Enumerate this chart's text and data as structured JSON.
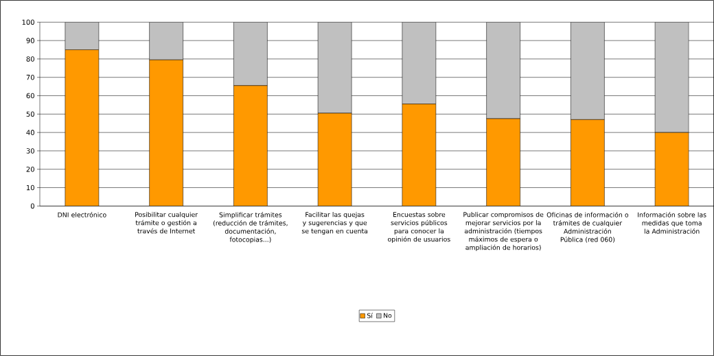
{
  "chart_data": {
    "type": "bar",
    "stacked": true,
    "categories": [
      "DNI electrónico",
      "Posibilitar cualquier trámite o gestión a través de Internet",
      "Simplificar trámites (reducción de trámites, documentación, fotocopias...)",
      "Facilitar las quejas y sugerencias y que se tengan en cuenta",
      "Encuestas sobre servicios públicos para conocer la opinión de usuarios",
      "Publicar compromisos de mejorar servicios por la administración (tiempos máximos de espera o ampliación de horarios)",
      "Oficinas de información o trámites de cualquier Administración Pública (red 060)",
      "Información sobre las medidas que toma la Administración"
    ],
    "series": [
      {
        "name": "Sí",
        "color": "#ff9900",
        "values": [
          85,
          79.5,
          65.5,
          50.5,
          55.5,
          47.5,
          47,
          40
        ]
      },
      {
        "name": "No",
        "color": "#c0c0c0",
        "values": [
          15,
          20.5,
          34.5,
          49.5,
          44.5,
          52.5,
          53,
          60
        ]
      }
    ],
    "ylim": [
      0,
      100
    ],
    "yticks": [
      0,
      10,
      20,
      30,
      40,
      50,
      60,
      70,
      80,
      90,
      100
    ],
    "grid": "y",
    "legend": "bottom"
  }
}
